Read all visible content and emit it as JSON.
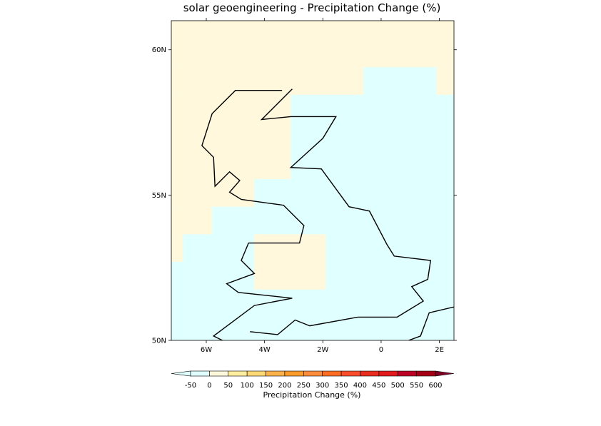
{
  "chart_data": {
    "type": "heatmap",
    "title": "solar geoengineering - Precipitation Change (%)",
    "map_extent": {
      "lon": [
        -7.2,
        2.5
      ],
      "lat": [
        50,
        61
      ]
    },
    "x_ticks": [
      {
        "lon": -6,
        "label": "6W"
      },
      {
        "lon": -4,
        "label": "4W"
      },
      {
        "lon": -2,
        "label": "2W"
      },
      {
        "lon": 0,
        "label": "0"
      },
      {
        "lon": 2,
        "label": "2E"
      }
    ],
    "y_ticks": [
      {
        "lat": 60,
        "label": "60N"
      },
      {
        "lat": 55,
        "label": "55N"
      },
      {
        "lat": 50,
        "label": "50N"
      }
    ],
    "field_colors": {
      "0_to_50": "#fff8dc",
      "-50_to_0": "#e0ffff"
    },
    "cells_0_to_50": [
      {
        "lon": [
          -7.2,
          2.5
        ],
        "lat": [
          59.4,
          61
        ]
      },
      {
        "lon": [
          -7.2,
          -0.6
        ],
        "lat": [
          58.45,
          59.4
        ]
      },
      {
        "lon": [
          1.9,
          2.5
        ],
        "lat": [
          58.45,
          59.4
        ]
      },
      {
        "lon": [
          -7.2,
          -3.1
        ],
        "lat": [
          55.55,
          58.45
        ]
      },
      {
        "lon": [
          -7.2,
          -4.35
        ],
        "lat": [
          54.6,
          55.55
        ]
      },
      {
        "lon": [
          -7.2,
          -5.8
        ],
        "lat": [
          53.65,
          54.6
        ]
      },
      {
        "lon": [
          -7.2,
          -6.8
        ],
        "lat": [
          52.7,
          53.65
        ]
      },
      {
        "lon": [
          -4.35,
          -1.9
        ],
        "lat": [
          51.75,
          53.65
        ]
      }
    ],
    "background_category": "-50_to_0",
    "coastline": [
      [
        [
          -3.4,
          58.6
        ],
        [
          -5.0,
          58.6
        ],
        [
          -5.8,
          57.8
        ],
        [
          -6.15,
          56.7
        ],
        [
          -5.75,
          56.3
        ],
        [
          -5.7,
          55.3
        ],
        [
          -5.2,
          55.8
        ],
        [
          -4.85,
          55.5
        ],
        [
          -5.2,
          55.1
        ],
        [
          -4.8,
          54.85
        ],
        [
          -3.35,
          54.65
        ],
        [
          -2.65,
          53.95
        ],
        [
          -2.8,
          53.35
        ],
        [
          -4.55,
          53.35
        ],
        [
          -4.8,
          52.75
        ],
        [
          -4.35,
          52.3
        ],
        [
          -5.3,
          51.95
        ],
        [
          -4.9,
          51.65
        ],
        [
          -3.05,
          51.45
        ],
        [
          -4.35,
          51.2
        ],
        [
          -5.75,
          50.15
        ],
        [
          -5.35,
          49.95
        ]
      ],
      [
        [
          -4.5,
          50.3
        ],
        [
          -3.55,
          50.2
        ],
        [
          -2.95,
          50.7
        ],
        [
          -2.45,
          50.5
        ],
        [
          -0.8,
          50.8
        ],
        [
          0.55,
          50.8
        ],
        [
          1.45,
          51.35
        ],
        [
          1.05,
          51.85
        ],
        [
          1.6,
          52.1
        ],
        [
          1.7,
          52.75
        ],
        [
          0.45,
          52.9
        ],
        [
          0.2,
          53.3
        ],
        [
          -0.4,
          54.45
        ],
        [
          -1.1,
          54.6
        ],
        [
          -2.05,
          55.9
        ],
        [
          -3.1,
          55.95
        ],
        [
          -2.0,
          56.95
        ],
        [
          -1.55,
          57.7
        ],
        [
          -3.1,
          57.7
        ],
        [
          -4.1,
          57.6
        ],
        [
          -3.05,
          58.65
        ]
      ],
      [
        [
          0.95,
          50.0
        ],
        [
          1.35,
          50.15
        ],
        [
          1.65,
          50.95
        ],
        [
          2.5,
          51.15
        ]
      ]
    ],
    "colorbar": {
      "label": "Precipitation Change (%)",
      "levels": [
        -50,
        0,
        50,
        100,
        150,
        200,
        250,
        300,
        350,
        400,
        450,
        500,
        550,
        600
      ],
      "level_labels": [
        "-50",
        "0",
        "50",
        "100",
        "150",
        "200",
        "250",
        "300",
        "350",
        "400",
        "450",
        "500",
        "550",
        "600"
      ],
      "under_color": "#e0ffff",
      "bin_colors": [
        "#e0ffff",
        "#fff8dc",
        "#ffeda0",
        "#fed976",
        "#feb24c",
        "#fd9c2c",
        "#fd8d3c",
        "#fc6c22",
        "#fc4e2a",
        "#e92d1e",
        "#e31a1c",
        "#bd0026",
        "#a50016"
      ],
      "over_color": "#800026"
    }
  }
}
